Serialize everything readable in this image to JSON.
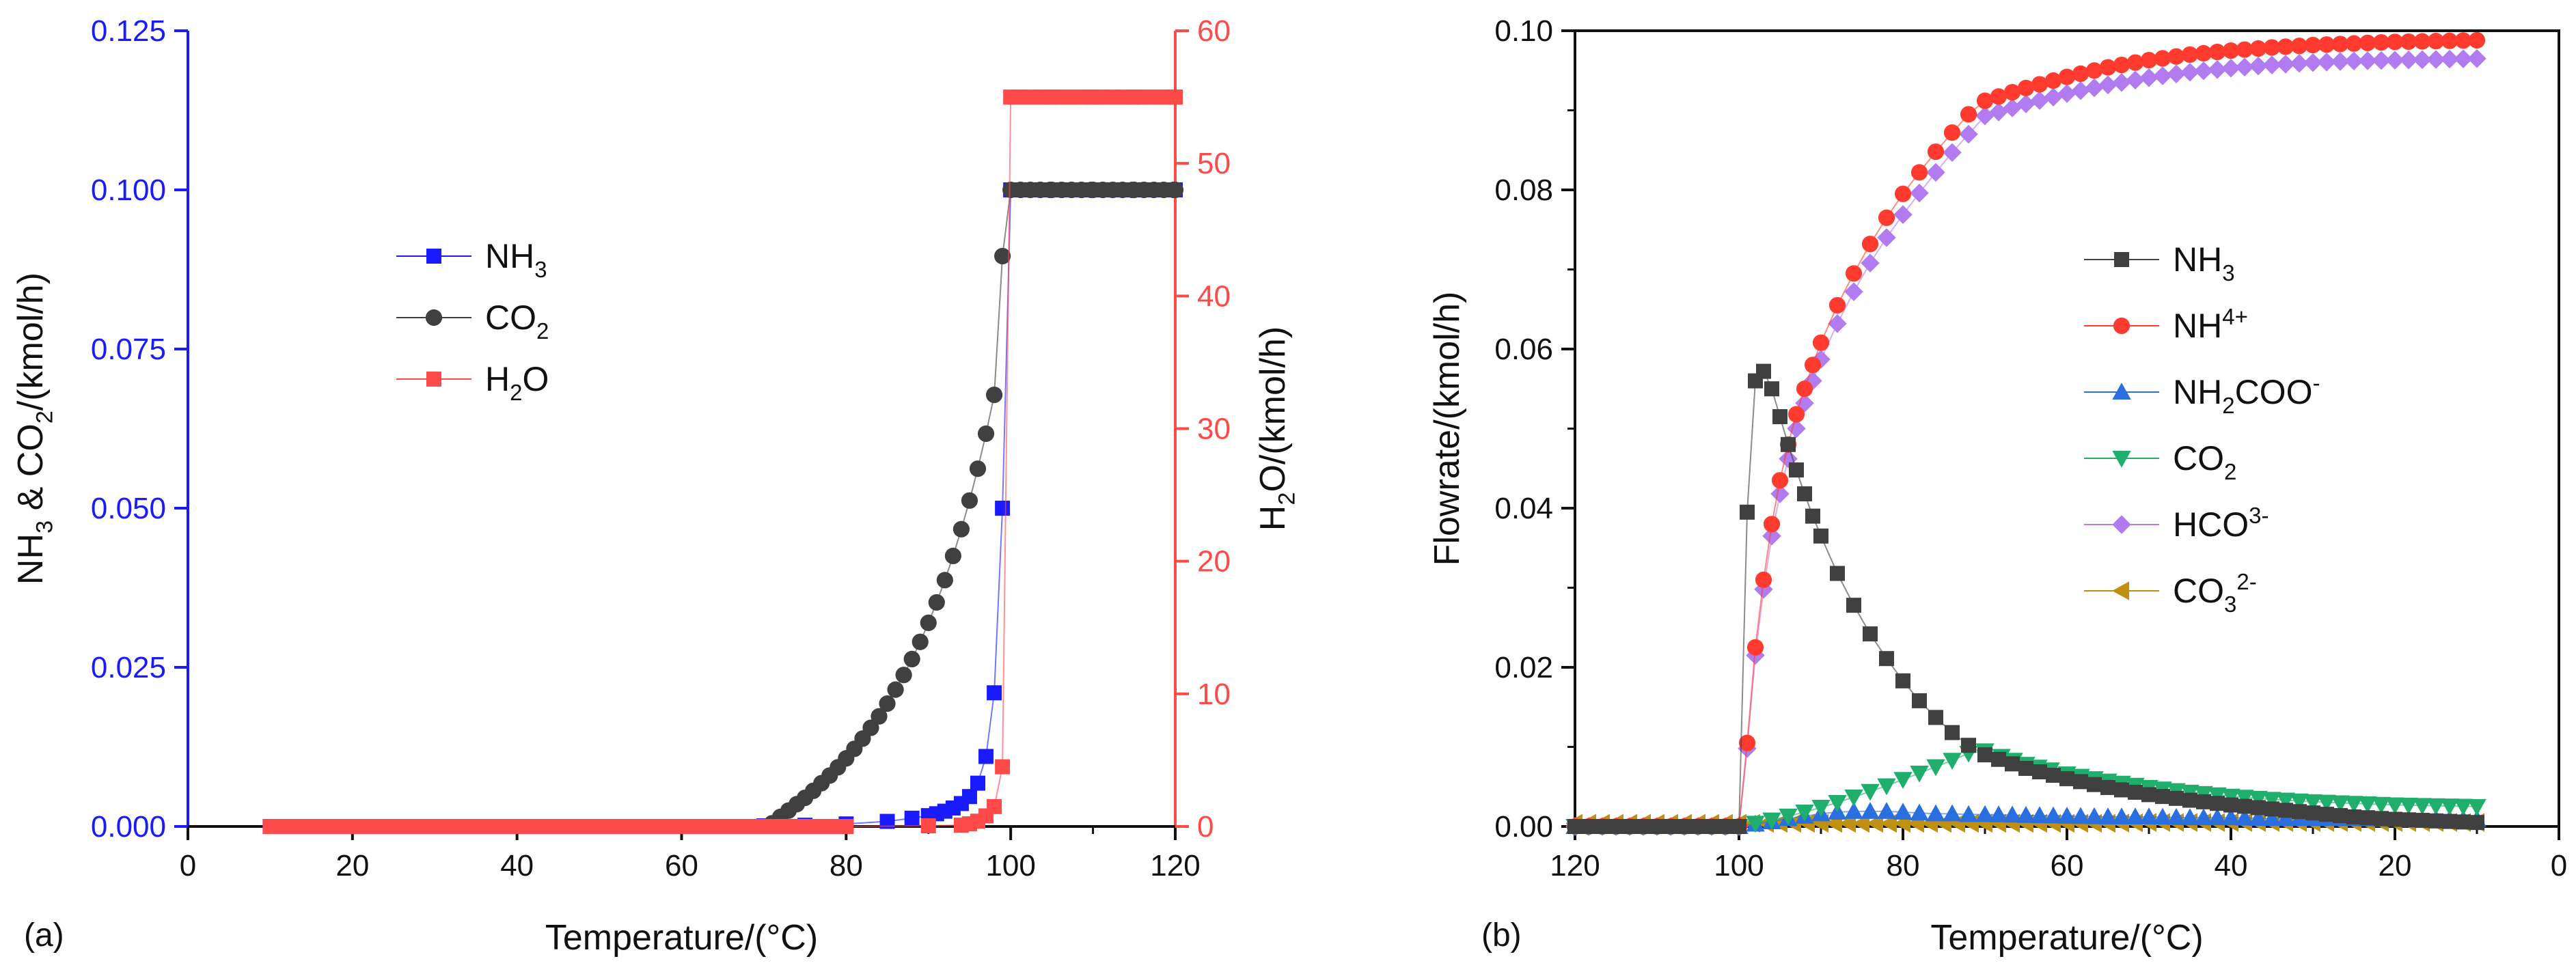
{
  "colors": {
    "nh3": "#1a1aff",
    "co2_gray": "#404040",
    "h2o": "#ff4a4a",
    "nh4": "#ff3b30",
    "nh2coo": "#2a6fe0",
    "co2_green": "#1fae6b",
    "hco3": "#b07cf0",
    "co3": "#c09010",
    "left_axis": "#1a1aff",
    "right_axis": "#ff4a4a"
  },
  "chart_data": [
    {
      "type": "scatter",
      "panel_label": "(a)",
      "xlabel": "Temperature/(°C)",
      "xlim": [
        0,
        120
      ],
      "x_ticks": [
        0,
        20,
        40,
        60,
        80,
        100,
        120
      ],
      "ylabel_left": "NH3 & CO2/(kmol/h)",
      "ylim_left": [
        0,
        0.125
      ],
      "y_ticks_left": [
        "0.000",
        "0.025",
        "0.050",
        "0.075",
        "0.100",
        "0.125"
      ],
      "ylabel_right": "H2O/(kmol/h)",
      "ylim_right": [
        0,
        60
      ],
      "y_ticks_right": [
        0,
        10,
        20,
        30,
        40,
        50,
        60
      ],
      "legend": [
        "NH3",
        "CO2",
        "H2O"
      ],
      "legend_position": "center-left",
      "series": [
        {
          "name": "NH3",
          "marker": "square",
          "axis": "left",
          "x": [
            10,
            20,
            30,
            40,
            50,
            60,
            70,
            75,
            80,
            85,
            88,
            90,
            91,
            92,
            93,
            94,
            95,
            96,
            97,
            98,
            99,
            100,
            105,
            110,
            115,
            120
          ],
          "y": [
            0,
            0,
            0,
            0,
            0,
            0,
            0.0001,
            0.0002,
            0.0004,
            0.0008,
            0.0013,
            0.0017,
            0.002,
            0.0024,
            0.0029,
            0.0036,
            0.0047,
            0.0068,
            0.011,
            0.021,
            0.05,
            0.1,
            0.1,
            0.1,
            0.1,
            0.1
          ]
        },
        {
          "name": "CO2",
          "marker": "circle",
          "axis": "left",
          "x": [
            71,
            72,
            73,
            74,
            75,
            76,
            77,
            78,
            79,
            80,
            81,
            82,
            83,
            84,
            85,
            86,
            87,
            88,
            89,
            90,
            91,
            92,
            93,
            94,
            95,
            96,
            97,
            98,
            99,
            100,
            105,
            110,
            115,
            120
          ],
          "y": [
            0.0005,
            0.0015,
            0.0025,
            0.0035,
            0.0045,
            0.0056,
            0.0068,
            0.008,
            0.0093,
            0.0107,
            0.0122,
            0.0138,
            0.0155,
            0.0173,
            0.0193,
            0.0215,
            0.0238,
            0.0263,
            0.029,
            0.032,
            0.0352,
            0.0387,
            0.0425,
            0.0467,
            0.0512,
            0.0562,
            0.0617,
            0.0678,
            0.0896,
            0.1,
            0.1,
            0.1,
            0.1,
            0.1
          ]
        },
        {
          "name": "H2O",
          "marker": "square",
          "axis": "right",
          "x": [
            10,
            20,
            30,
            40,
            50,
            60,
            70,
            80,
            90,
            94,
            95,
            96,
            97,
            98,
            99,
            100,
            105,
            110,
            115,
            120
          ],
          "y": [
            0,
            0,
            0,
            0,
            0,
            0,
            0,
            0,
            0.05,
            0.1,
            0.2,
            0.4,
            0.8,
            1.5,
            4.5,
            55,
            55,
            55,
            55,
            55
          ]
        }
      ]
    },
    {
      "type": "scatter",
      "panel_label": "(b)",
      "xlabel": "Temperature/(°C)",
      "xlim": [
        120,
        0
      ],
      "x_ticks": [
        120,
        100,
        80,
        60,
        40,
        20,
        0
      ],
      "ylabel": "Flowrate/(kmol/h)",
      "ylim": [
        0,
        0.1
      ],
      "y_ticks": [
        "0.00",
        "0.02",
        "0.04",
        "0.06",
        "0.08",
        "0.10"
      ],
      "legend": [
        "NH3",
        "NH4+",
        "NH2COO-",
        "CO2",
        "HCO3-",
        "CO32-"
      ],
      "legend_position": "center-right",
      "series": [
        {
          "name": "NH3",
          "marker": "square",
          "x": [
            120,
            110,
            100,
            99,
            98,
            97,
            96,
            95,
            94,
            93,
            92,
            91,
            90,
            88,
            86,
            84,
            82,
            80,
            78,
            76,
            74,
            72,
            70,
            65,
            60,
            55,
            50,
            45,
            40,
            35,
            30,
            25,
            20,
            15,
            10
          ],
          "y": [
            0,
            0,
            0,
            0.0395,
            0.056,
            0.0572,
            0.055,
            0.0515,
            0.048,
            0.0448,
            0.0418,
            0.039,
            0.0365,
            0.0318,
            0.0278,
            0.0242,
            0.0211,
            0.0183,
            0.0158,
            0.0137,
            0.0118,
            0.0102,
            0.009,
            0.0073,
            0.006,
            0.0049,
            0.004,
            0.0033,
            0.0027,
            0.0022,
            0.0017,
            0.0012,
            0.0009,
            0.0007,
            0.0005
          ]
        },
        {
          "name": "NH4+",
          "marker": "circle",
          "x": [
            120,
            110,
            100,
            99,
            98,
            97,
            96,
            95,
            94,
            93,
            92,
            91,
            90,
            88,
            86,
            84,
            82,
            80,
            78,
            76,
            74,
            72,
            70,
            65,
            60,
            55,
            50,
            45,
            40,
            35,
            30,
            25,
            20,
            15,
            10
          ],
          "y": [
            0,
            0,
            0,
            0.0105,
            0.0225,
            0.031,
            0.038,
            0.0435,
            0.048,
            0.0518,
            0.055,
            0.058,
            0.0608,
            0.0655,
            0.0695,
            0.0732,
            0.0765,
            0.0795,
            0.0822,
            0.0848,
            0.0872,
            0.0895,
            0.0912,
            0.0928,
            0.0942,
            0.0954,
            0.0963,
            0.097,
            0.0975,
            0.0979,
            0.0982,
            0.0984,
            0.0986,
            0.0987,
            0.0988
          ]
        },
        {
          "name": "NH2COO-",
          "marker": "triangle-up",
          "x": [
            120,
            110,
            100,
            98,
            96,
            94,
            92,
            90,
            88,
            86,
            84,
            82,
            80,
            78,
            76,
            74,
            72,
            70,
            65,
            60,
            55,
            50,
            45,
            40,
            35,
            30,
            25,
            20,
            15,
            10
          ],
          "y": [
            0,
            0,
            0,
            0.0003,
            0.0006,
            0.001,
            0.0013,
            0.0016,
            0.0018,
            0.0019,
            0.0019,
            0.0019,
            0.0018,
            0.0017,
            0.0016,
            0.0016,
            0.0015,
            0.0015,
            0.0014,
            0.0013,
            0.0012,
            0.0012,
            0.0011,
            0.0011,
            0.001,
            0.001,
            0.001,
            0.0009,
            0.0009,
            0.0009
          ]
        },
        {
          "name": "CO2",
          "marker": "triangle-down",
          "x": [
            120,
            110,
            100,
            98,
            96,
            94,
            92,
            90,
            88,
            86,
            84,
            82,
            80,
            78,
            76,
            74,
            72,
            70,
            68,
            65,
            62,
            60,
            55,
            50,
            45,
            40,
            35,
            30,
            25,
            20,
            15,
            10
          ],
          "y": [
            0,
            0,
            0,
            0.0004,
            0.0008,
            0.0013,
            0.0018,
            0.0024,
            0.003,
            0.0037,
            0.0044,
            0.0051,
            0.0059,
            0.0067,
            0.0075,
            0.0083,
            0.0092,
            0.0095,
            0.0088,
            0.0078,
            0.0071,
            0.0066,
            0.0057,
            0.0049,
            0.0043,
            0.0038,
            0.0034,
            0.0031,
            0.0029,
            0.0027,
            0.0026,
            0.0025
          ]
        },
        {
          "name": "HCO3-",
          "marker": "diamond",
          "x": [
            120,
            110,
            100,
            99,
            98,
            97,
            96,
            95,
            94,
            93,
            92,
            91,
            90,
            88,
            86,
            84,
            82,
            80,
            78,
            76,
            74,
            72,
            70,
            65,
            60,
            55,
            50,
            45,
            40,
            35,
            30,
            25,
            20,
            15,
            10
          ],
          "y": [
            0,
            0,
            0,
            0.0098,
            0.0215,
            0.0298,
            0.0365,
            0.0418,
            0.0462,
            0.05,
            0.0532,
            0.056,
            0.0587,
            0.0632,
            0.0672,
            0.0708,
            0.074,
            0.0769,
            0.0796,
            0.0822,
            0.0847,
            0.087,
            0.0893,
            0.0908,
            0.0921,
            0.0932,
            0.0941,
            0.0948,
            0.0953,
            0.0957,
            0.096,
            0.0962,
            0.0963,
            0.0964,
            0.0965
          ]
        },
        {
          "name": "CO32-",
          "marker": "triangle-left",
          "x": [
            120,
            115,
            110,
            105,
            100,
            95,
            90,
            85,
            80,
            75,
            70,
            65,
            60,
            55,
            50,
            45,
            40,
            35,
            30,
            25,
            20,
            15,
            10
          ],
          "y": [
            0.0004,
            0.0004,
            0.0004,
            0.0004,
            0.0004,
            0.0004,
            0.0004,
            0.0004,
            0.0004,
            0.0004,
            0.0004,
            0.0004,
            0.0004,
            0.0004,
            0.0005,
            0.0005,
            0.0005,
            0.0005,
            0.0005,
            0.0005,
            0.0005,
            0.0005,
            0.0005
          ]
        }
      ]
    }
  ]
}
